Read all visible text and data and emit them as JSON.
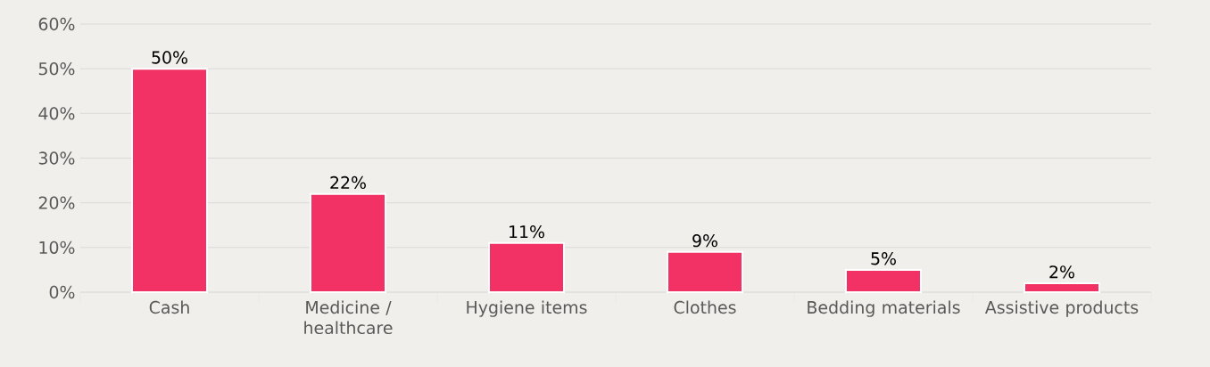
{
  "chart_data": {
    "type": "bar",
    "categories": [
      "Cash",
      "Medicine / healthcare",
      "Hygiene items",
      "Clothes",
      "Bedding materials",
      "Assistive products"
    ],
    "values": [
      50,
      22,
      11,
      9,
      5,
      2
    ],
    "value_labels": [
      "50%",
      "22%",
      "11%",
      "9%",
      "5%",
      "2%"
    ],
    "color": "#f23265",
    "ylim": [
      0,
      60
    ],
    "yticks": [
      {
        "value": 0,
        "label": "0%"
      },
      {
        "value": 10,
        "label": "10%"
      },
      {
        "value": 20,
        "label": "20%"
      },
      {
        "value": 30,
        "label": "30%"
      },
      {
        "value": 40,
        "label": "40%"
      },
      {
        "value": 50,
        "label": "50%"
      },
      {
        "value": 60,
        "label": "60%"
      }
    ],
    "grid": "y"
  }
}
